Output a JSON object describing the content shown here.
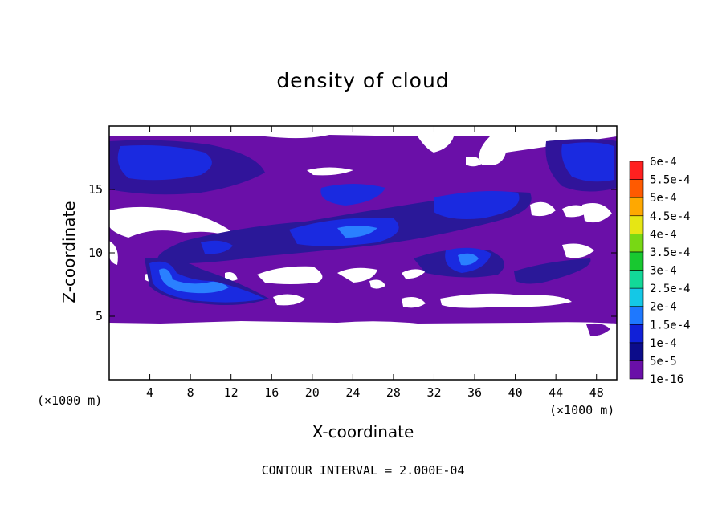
{
  "chart_data": {
    "type": "heatmap",
    "title": "density of cloud",
    "xlabel": "X-coordinate",
    "ylabel": "Z-coordinate",
    "x_unit_left": "(×1000 m)",
    "x_unit_right": "(×1000 m)",
    "xlim": [
      0,
      50
    ],
    "ylim": [
      0,
      20
    ],
    "x_ticks": [
      4,
      8,
      12,
      16,
      20,
      24,
      28,
      32,
      36,
      40,
      44,
      48
    ],
    "x_tick_labels": [
      "4",
      "8",
      "12",
      "16",
      "20",
      "24",
      "28",
      "32",
      "36",
      "40",
      "44",
      "48"
    ],
    "y_ticks": [
      5,
      10,
      15
    ],
    "y_tick_labels": [
      "5",
      "10",
      "15"
    ],
    "contour_note": "CONTOUR INTERVAL = 2.000E-04",
    "colorbar": {
      "levels": [
        "1e-16",
        "5e-5",
        "1e-4",
        "1.5e-4",
        "2e-4",
        "2.5e-4",
        "3e-4",
        "3.5e-4",
        "4e-4",
        "4.5e-4",
        "5e-4",
        "5.5e-4",
        "6e-4"
      ],
      "colors": [
        "#6a0fa8",
        "#0c0c8a",
        "#1020d8",
        "#1e78ff",
        "#14c8e6",
        "#12d898",
        "#18c830",
        "#78d814",
        "#e6e614",
        "#ffa800",
        "#ff5a00",
        "#ff2020",
        "#ff9090"
      ]
    },
    "cloud_layer": {
      "z_min": 4.5,
      "z_max": 19,
      "background_level": "1e-16"
    },
    "features": [
      {
        "name": "upper-left high-density region",
        "x": [
          0,
          10
        ],
        "z": [
          15,
          18.5
        ],
        "level": "5e-5"
      },
      {
        "name": "upper-right high-density region",
        "x": [
          44,
          50
        ],
        "z": [
          15.5,
          18.5
        ],
        "level": "5e-5"
      },
      {
        "name": "mid-level band",
        "x": [
          20,
          44
        ],
        "z": [
          10,
          15
        ],
        "level": "1e-4"
      },
      {
        "name": "lower-left dense region",
        "x": [
          4,
          16
        ],
        "z": [
          6,
          9.5
        ],
        "level": "1.5e-4"
      },
      {
        "name": "mid-right patch",
        "x": [
          30,
          38
        ],
        "z": [
          8,
          11
        ],
        "level": "1e-4"
      }
    ]
  }
}
